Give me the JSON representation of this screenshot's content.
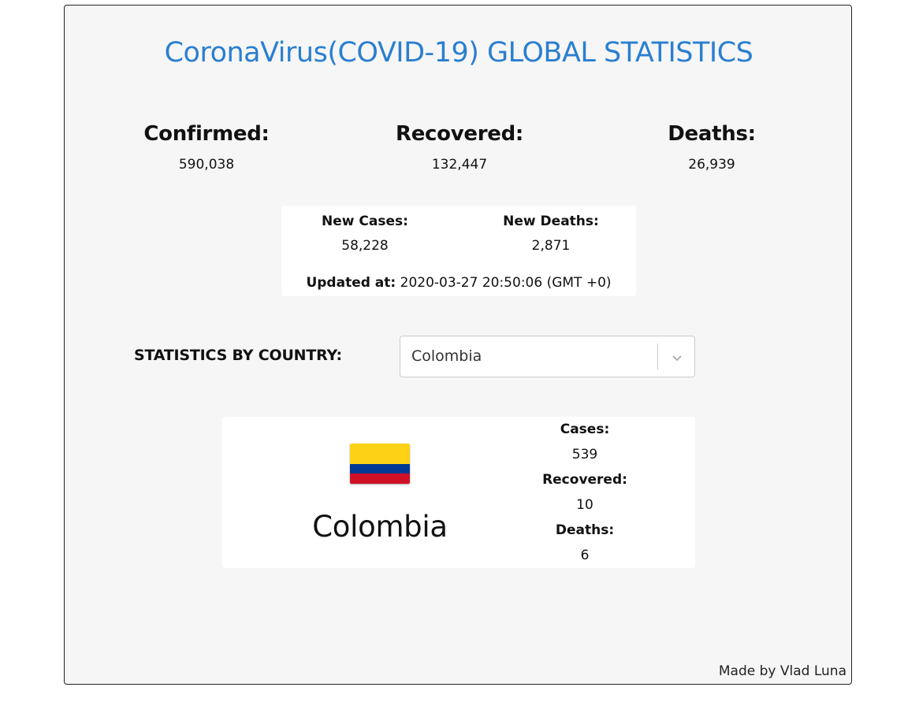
{
  "header": {
    "title": "CoronaVirus(COVID-19) GLOBAL STATISTICS"
  },
  "global": {
    "confirmed_label": "Confirmed:",
    "confirmed_value": "590,038",
    "recovered_label": "Recovered:",
    "recovered_value": "132,447",
    "deaths_label": "Deaths:",
    "deaths_value": "26,939"
  },
  "daily": {
    "new_cases_label": "New Cases:",
    "new_cases_value": "58,228",
    "new_deaths_label": "New Deaths:",
    "new_deaths_value": "2,871",
    "updated_label": "Updated at:",
    "updated_value": "2020-03-27 20:50:06 (GMT +0)"
  },
  "country_selector": {
    "label": "STATISTICS BY COUNTRY:",
    "selected": "Colombia",
    "icon": "chevron-down-icon"
  },
  "country": {
    "name": "Colombia",
    "flag_icon": "colombia-flag-icon",
    "flag_colors": [
      "#fcd116",
      "#003893",
      "#ce1126"
    ],
    "cases_label": "Cases:",
    "cases_value": "539",
    "recovered_label": "Recovered:",
    "recovered_value": "10",
    "deaths_label": "Deaths:",
    "deaths_value": "6"
  },
  "footer": {
    "credit": "Made by Vlad Luna"
  },
  "colors": {
    "title": "#2a7fd0",
    "panel_background": "#f6f6f6"
  }
}
